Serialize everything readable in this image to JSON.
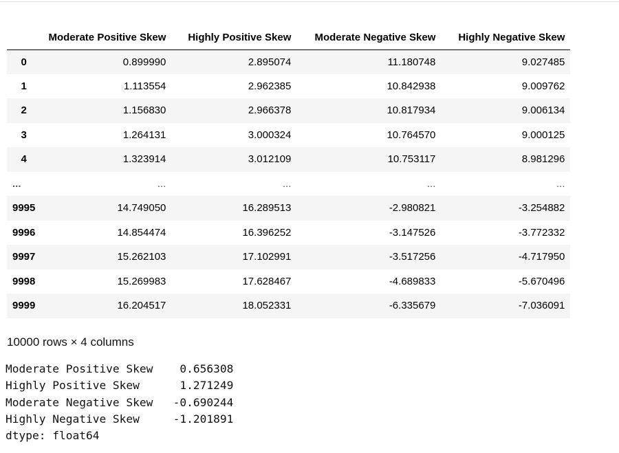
{
  "dataframe": {
    "index_header": "",
    "columns": [
      "Moderate Positive Skew",
      "Highly Positive Skew",
      "Moderate Negative Skew",
      "Highly Negative Skew"
    ],
    "rows": [
      {
        "index": "0",
        "values": [
          "0.899990",
          "2.895074",
          "11.180748",
          "9.027485"
        ]
      },
      {
        "index": "1",
        "values": [
          "1.113554",
          "2.962385",
          "10.842938",
          "9.009762"
        ]
      },
      {
        "index": "2",
        "values": [
          "1.156830",
          "2.966378",
          "10.817934",
          "9.006134"
        ]
      },
      {
        "index": "3",
        "values": [
          "1.264131",
          "3.000324",
          "10.764570",
          "9.000125"
        ]
      },
      {
        "index": "4",
        "values": [
          "1.323914",
          "3.012109",
          "10.753117",
          "8.981296"
        ]
      },
      {
        "index": "...",
        "values": [
          "...",
          "...",
          "...",
          "..."
        ]
      },
      {
        "index": "9995",
        "values": [
          "14.749050",
          "16.289513",
          "-2.980821",
          "-3.254882"
        ]
      },
      {
        "index": "9996",
        "values": [
          "14.854474",
          "16.396252",
          "-3.147526",
          "-3.772332"
        ]
      },
      {
        "index": "9997",
        "values": [
          "15.262103",
          "17.102991",
          "-3.517256",
          "-4.717950"
        ]
      },
      {
        "index": "9998",
        "values": [
          "15.269983",
          "17.628467",
          "-4.689833",
          "-5.670496"
        ]
      },
      {
        "index": "9999",
        "values": [
          "16.204517",
          "18.052331",
          "-6.335679",
          "-7.036091"
        ]
      }
    ],
    "shape_note": "10000 rows × 4 columns"
  },
  "series_output": {
    "lines": [
      "Moderate Positive Skew    0.656308",
      "Highly Positive Skew      1.271249",
      "Moderate Negative Skew   -0.690244",
      "Highly Negative Skew     -1.201891",
      "dtype: float64"
    ]
  }
}
